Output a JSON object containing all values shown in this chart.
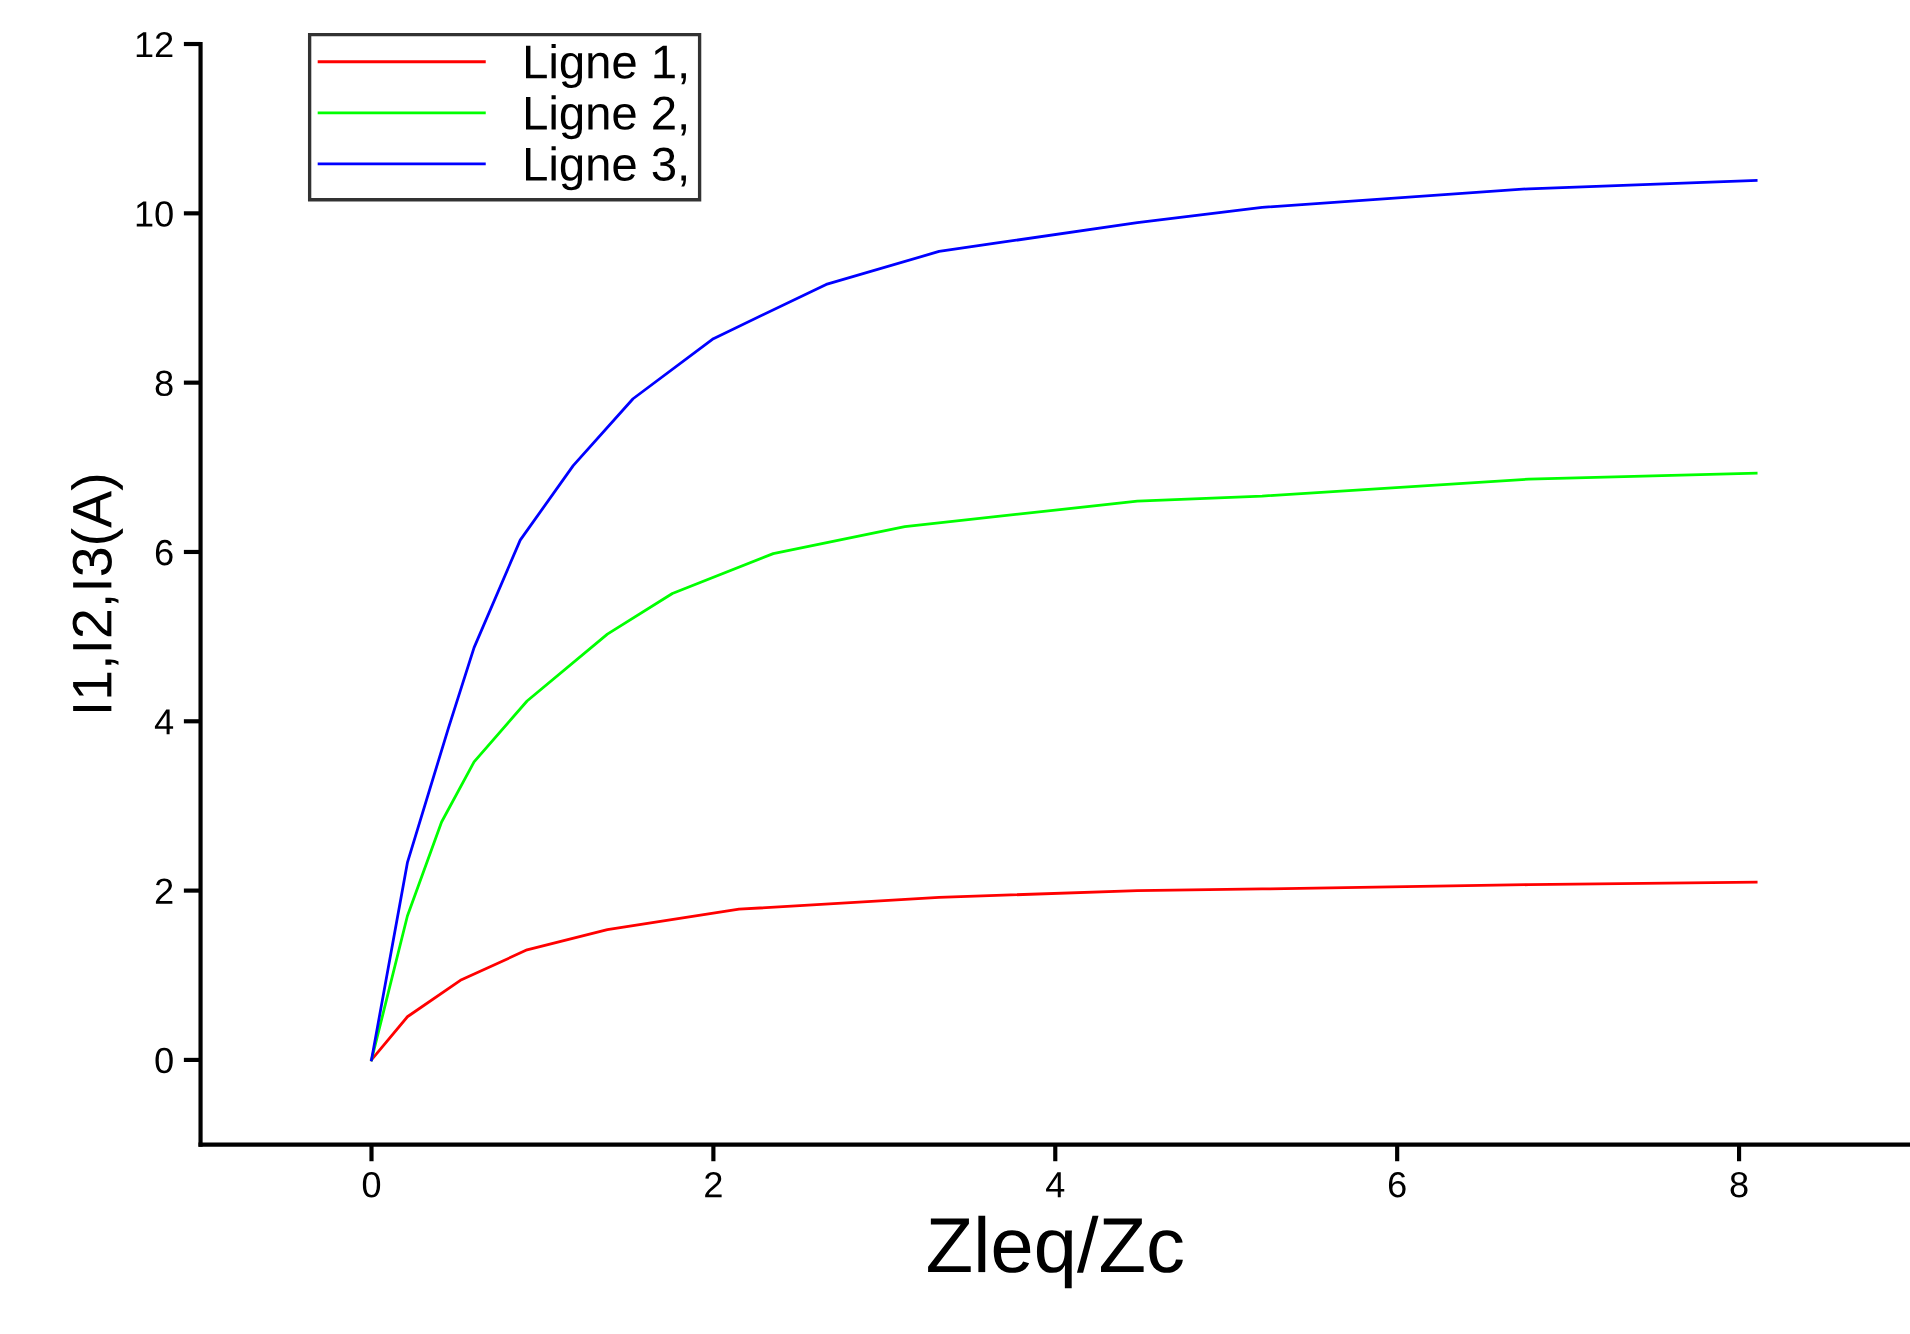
{
  "chart_data": {
    "type": "line",
    "xlabel": "Zleq/Zc",
    "ylabel": "I1,I2,I3(A)",
    "xlim": [
      -1,
      9
    ],
    "xticks": [
      0,
      2,
      4,
      6,
      8
    ],
    "ylim": [
      -1,
      12
    ],
    "yticks": [
      0,
      2,
      4,
      6,
      8,
      10,
      12
    ],
    "grid": false,
    "legend": "top left",
    "marker": "none",
    "line_style": "solid",
    "series": [
      {
        "name": "Ligne 1,",
        "color": "#ff0000",
        "x": [
          0,
          0.21,
          0.52,
          0.91,
          1.38,
          2.15,
          3.32,
          4.48,
          5.21,
          6.77,
          8.1
        ],
        "values": [
          0,
          0.51,
          0.94,
          1.3,
          1.54,
          1.78,
          1.92,
          2.0,
          2.02,
          2.07,
          2.1
        ]
      },
      {
        "name": "Ligne 2,",
        "color": "#00ff00",
        "x": [
          0,
          0.21,
          0.41,
          0.6,
          0.91,
          1.38,
          1.76,
          2.35,
          3.12,
          4.48,
          5.21,
          6.77,
          8.1
        ],
        "values": [
          0,
          1.7,
          2.81,
          3.52,
          4.24,
          5.03,
          5.51,
          5.98,
          6.3,
          6.6,
          6.66,
          6.86,
          6.93
        ]
      },
      {
        "name": "Ligne 3,",
        "color": "#0000ff",
        "x": [
          0,
          0.21,
          0.45,
          0.6,
          0.87,
          1.18,
          1.53,
          2.0,
          2.66,
          3.32,
          3.66,
          4.48,
          5.21,
          6.77,
          8.1
        ],
        "values": [
          0,
          2.33,
          3.92,
          4.87,
          6.14,
          7.02,
          7.81,
          8.52,
          9.16,
          9.55,
          9.65,
          9.89,
          10.07,
          10.29,
          10.39
        ]
      }
    ]
  }
}
